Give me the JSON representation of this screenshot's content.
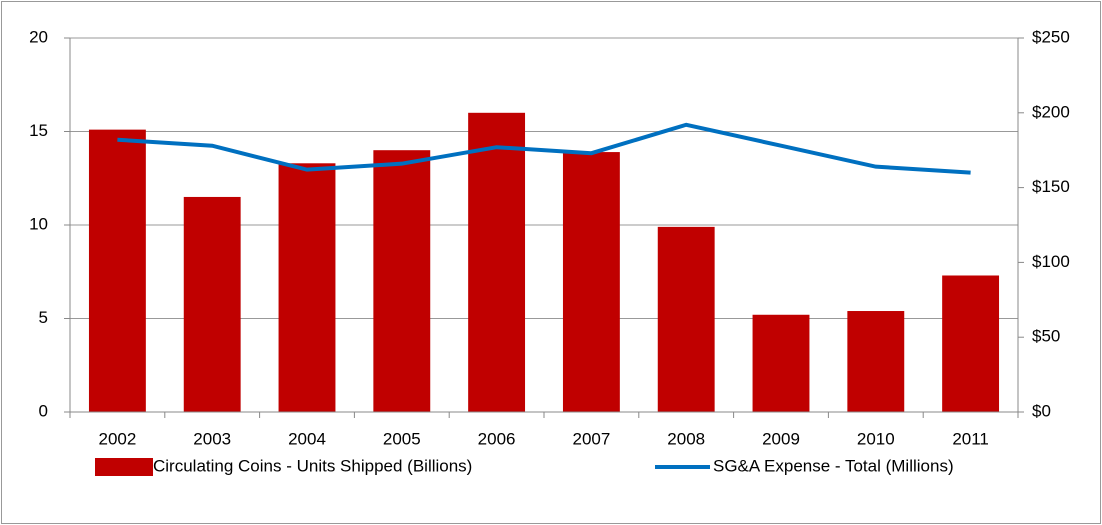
{
  "chart_data": {
    "type": "bar",
    "categories": [
      "2002",
      "2003",
      "2004",
      "2005",
      "2006",
      "2007",
      "2008",
      "2009",
      "2010",
      "2011"
    ],
    "series": [
      {
        "name": "Circulating Coins - Units  Shipped (Billions)",
        "type": "bar",
        "color": "#c00000",
        "values": [
          15.1,
          11.5,
          13.3,
          14.0,
          16.0,
          13.9,
          9.9,
          5.2,
          5.4,
          7.3
        ]
      },
      {
        "name": "SG&A Expense - Total  (Millions)",
        "type": "line",
        "axis": "y2",
        "color": "#0070c0",
        "values": [
          182,
          178,
          162,
          166,
          177,
          173,
          192,
          178,
          164,
          160
        ]
      }
    ],
    "ylim": [
      0,
      20
    ],
    "yticks": [
      0,
      5,
      10,
      15,
      20
    ],
    "y2lim": [
      0,
      250
    ],
    "y2ticks": [
      {
        "value": 0,
        "label": "$0"
      },
      {
        "value": 50,
        "label": "$50"
      },
      {
        "value": 100,
        "label": "$100"
      },
      {
        "value": 150,
        "label": "$150"
      },
      {
        "value": 200,
        "label": "$200"
      },
      {
        "value": 250,
        "label": "$250"
      }
    ],
    "grid": true,
    "legend": "bottom"
  }
}
